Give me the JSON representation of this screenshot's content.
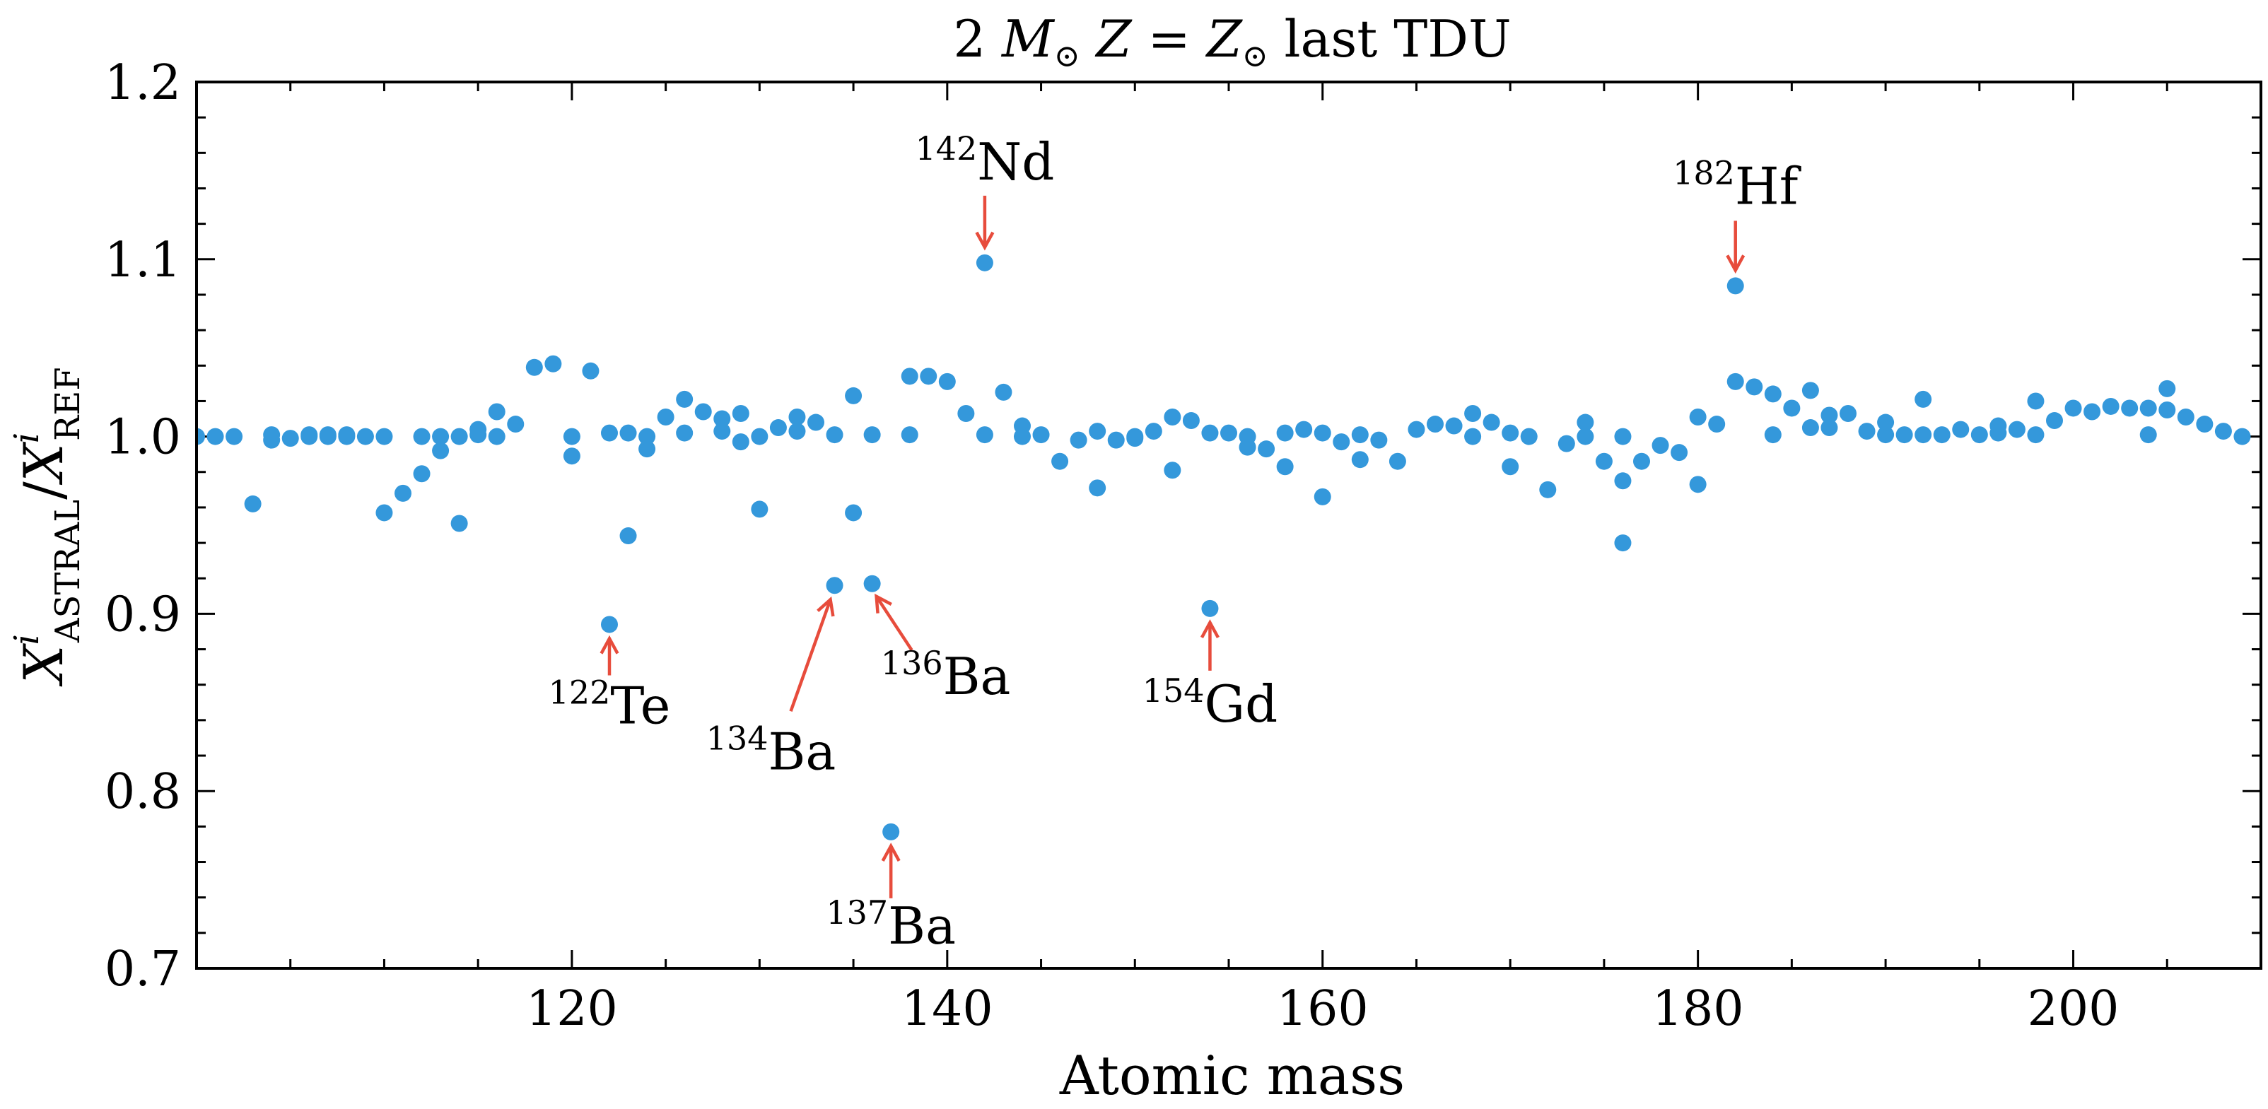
{
  "chart_data": {
    "type": "scatter",
    "title": {
      "prefix": "2 ",
      "m": "M",
      "sun": "⊙",
      "z": "Z",
      "eq": " = ",
      "z2": "Z",
      "sun2": "⊙",
      "suffix": " last TDU"
    },
    "xlabel": "Atomic mass",
    "ylabel": {
      "x1": "X",
      "sup1": "i",
      "sub1": "ASTRAL",
      "slash": "/",
      "x2": "X",
      "sup2": "i",
      "sub2": "REF"
    },
    "xlim": [
      100,
      210
    ],
    "ylim": [
      0.7,
      1.2
    ],
    "x_ticks": [
      120,
      140,
      160,
      180,
      200
    ],
    "x_tick_labels": [
      "120",
      "140",
      "160",
      "180",
      "200"
    ],
    "y_ticks": [
      0.7,
      0.8,
      0.9,
      1.0,
      1.1,
      1.2
    ],
    "y_tick_labels": [
      "0.7",
      "0.8",
      "0.9",
      "1.0",
      "1.1",
      "1.2"
    ],
    "point_color": "#3498db",
    "arrow_color": "#e74c3c",
    "series": [
      {
        "name": "isotopes",
        "points": [
          [
            100,
            1.0
          ],
          [
            101,
            1.0
          ],
          [
            102,
            1.0
          ],
          [
            103,
            0.962
          ],
          [
            104,
            0.998
          ],
          [
            104,
            1.001
          ],
          [
            105,
            0.999
          ],
          [
            106,
            1.0
          ],
          [
            106,
            1.001
          ],
          [
            107,
            1.0
          ],
          [
            107,
            1.001
          ],
          [
            108,
            1.0
          ],
          [
            108,
            1.001
          ],
          [
            109,
            1.0
          ],
          [
            110,
            1.0
          ],
          [
            110,
            0.957
          ],
          [
            111,
            0.968
          ],
          [
            112,
            0.979
          ],
          [
            112,
            1.0
          ],
          [
            113,
            0.992
          ],
          [
            113,
            1.0
          ],
          [
            114,
            0.951
          ],
          [
            114,
            1.0
          ],
          [
            115,
            1.004
          ],
          [
            115,
            1.001
          ],
          [
            116,
            1.014
          ],
          [
            116,
            1.0
          ],
          [
            117,
            1.007
          ],
          [
            118,
            1.039
          ],
          [
            119,
            1.041
          ],
          [
            120,
            1.0
          ],
          [
            120,
            0.989
          ],
          [
            121,
            1.037
          ],
          [
            122,
            0.894
          ],
          [
            122,
            1.002
          ],
          [
            123,
            0.944
          ],
          [
            123,
            1.002
          ],
          [
            124,
            0.993
          ],
          [
            124,
            1.0
          ],
          [
            125,
            1.011
          ],
          [
            126,
            1.002
          ],
          [
            126,
            1.021
          ],
          [
            127,
            1.014
          ],
          [
            128,
            1.01
          ],
          [
            128,
            1.003
          ],
          [
            129,
            0.997
          ],
          [
            129,
            1.013
          ],
          [
            130,
            0.959
          ],
          [
            130,
            1.0
          ],
          [
            131,
            1.005
          ],
          [
            132,
            1.011
          ],
          [
            132,
            1.003
          ],
          [
            133,
            1.008
          ],
          [
            134,
            0.916
          ],
          [
            134,
            1.001
          ],
          [
            135,
            0.957
          ],
          [
            135,
            1.023
          ],
          [
            136,
            0.917
          ],
          [
            136,
            1.001
          ],
          [
            137,
            0.777
          ],
          [
            138,
            1.034
          ],
          [
            138,
            1.001
          ],
          [
            139,
            1.034
          ],
          [
            140,
            1.031
          ],
          [
            141,
            1.013
          ],
          [
            142,
            1.098
          ],
          [
            142,
            1.001
          ],
          [
            143,
            1.025
          ],
          [
            144,
            1.006
          ],
          [
            144,
            1.0
          ],
          [
            145,
            1.001
          ],
          [
            146,
            0.986
          ],
          [
            147,
            0.998
          ],
          [
            148,
            0.971
          ],
          [
            148,
            1.003
          ],
          [
            149,
            0.998
          ],
          [
            150,
            0.999
          ],
          [
            150,
            1.0
          ],
          [
            151,
            1.003
          ],
          [
            152,
            0.981
          ],
          [
            152,
            1.011
          ],
          [
            153,
            1.009
          ],
          [
            154,
            0.903
          ],
          [
            154,
            1.002
          ],
          [
            155,
            1.002
          ],
          [
            156,
            0.994
          ],
          [
            156,
            1.0
          ],
          [
            157,
            0.993
          ],
          [
            158,
            0.983
          ],
          [
            158,
            1.002
          ],
          [
            159,
            1.004
          ],
          [
            160,
            0.966
          ],
          [
            160,
            1.002
          ],
          [
            161,
            0.997
          ],
          [
            162,
            1.001
          ],
          [
            162,
            0.987
          ],
          [
            163,
            0.998
          ],
          [
            164,
            0.986
          ],
          [
            165,
            1.004
          ],
          [
            166,
            1.007
          ],
          [
            167,
            1.006
          ],
          [
            168,
            1.013
          ],
          [
            168,
            1.0
          ],
          [
            169,
            1.008
          ],
          [
            170,
            0.983
          ],
          [
            170,
            1.002
          ],
          [
            171,
            1.0
          ],
          [
            172,
            0.97
          ],
          [
            173,
            0.996
          ],
          [
            174,
            1.008
          ],
          [
            174,
            1.0
          ],
          [
            175,
            0.986
          ],
          [
            176,
            0.94
          ],
          [
            176,
            0.975
          ],
          [
            176,
            1.0
          ],
          [
            177,
            0.986
          ],
          [
            178,
            0.995
          ],
          [
            179,
            0.991
          ],
          [
            180,
            0.973
          ],
          [
            180,
            1.011
          ],
          [
            181,
            1.007
          ],
          [
            182,
            1.085
          ],
          [
            182,
            1.031
          ],
          [
            183,
            1.028
          ],
          [
            184,
            1.024
          ],
          [
            184,
            1.001
          ],
          [
            185,
            1.016
          ],
          [
            186,
            1.026
          ],
          [
            186,
            1.005
          ],
          [
            187,
            1.005
          ],
          [
            187,
            1.012
          ],
          [
            188,
            1.013
          ],
          [
            189,
            1.003
          ],
          [
            190,
            1.001
          ],
          [
            190,
            1.008
          ],
          [
            191,
            1.001
          ],
          [
            192,
            1.021
          ],
          [
            192,
            1.001
          ],
          [
            193,
            1.001
          ],
          [
            194,
            1.004
          ],
          [
            195,
            1.001
          ],
          [
            196,
            1.006
          ],
          [
            196,
            1.002
          ],
          [
            197,
            1.004
          ],
          [
            198,
            1.001
          ],
          [
            198,
            1.02
          ],
          [
            199,
            1.009
          ],
          [
            200,
            1.016
          ],
          [
            201,
            1.014
          ],
          [
            202,
            1.017
          ],
          [
            203,
            1.016
          ],
          [
            204,
            1.016
          ],
          [
            204,
            1.001
          ],
          [
            205,
            1.027
          ],
          [
            205,
            1.015
          ],
          [
            206,
            1.011
          ],
          [
            207,
            1.007
          ],
          [
            208,
            1.003
          ],
          [
            209,
            1.0
          ]
        ]
      }
    ],
    "annotations": [
      {
        "mass": "142",
        "el": "Nd",
        "x": 142,
        "y": 1.098
      },
      {
        "mass": "182",
        "el": "Hf",
        "x": 182,
        "y": 1.085
      },
      {
        "mass": "122",
        "el": "Te",
        "x": 122,
        "y": 0.894
      },
      {
        "mass": "134",
        "el": "Ba",
        "x": 134,
        "y": 0.916
      },
      {
        "mass": "136",
        "el": "Ba",
        "x": 136,
        "y": 0.917
      },
      {
        "mass": "154",
        "el": "Gd",
        "x": 154,
        "y": 0.903
      },
      {
        "mass": "137",
        "el": "Ba",
        "x": 137,
        "y": 0.777
      }
    ]
  }
}
